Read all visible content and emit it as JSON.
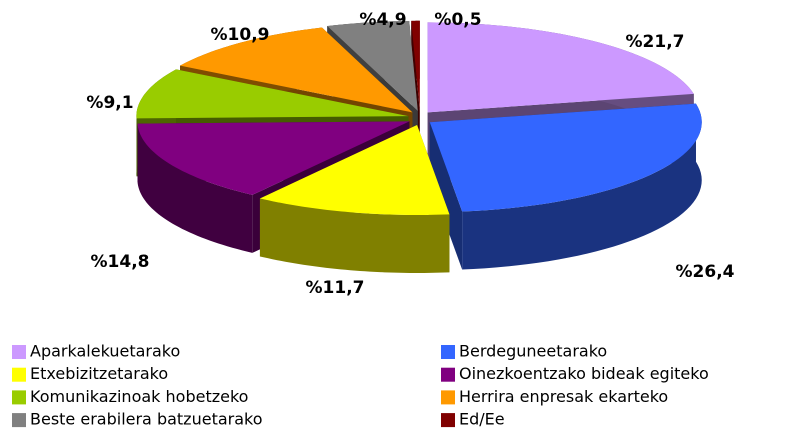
{
  "chart_data": {
    "type": "pie3d",
    "categories": [
      "Aparkalekuetarako",
      "Berdeguneetarako",
      "Etxebizitzetarako",
      "Oinezkoentzako bideak egiteko",
      "Komunikazinoak hobetzeko",
      "Herrira enpresak ekarteko",
      "Beste erabilera batzuetarako",
      "Ed/Ee"
    ],
    "values": [
      21.7,
      26.4,
      11.7,
      14.8,
      9.1,
      10.9,
      4.9,
      0.5
    ],
    "value_labels": [
      "%21,7",
      "%26,4",
      "%11,7",
      "%14,8",
      "%9,1",
      "%10,9",
      "%4,9",
      "%0,5"
    ],
    "colors": [
      "#cc99ff",
      "#3366ff",
      "#ffff00",
      "#800080",
      "#99cc00",
      "#ff9900",
      "#808080",
      "#800000"
    ],
    "legend": "bottom"
  }
}
